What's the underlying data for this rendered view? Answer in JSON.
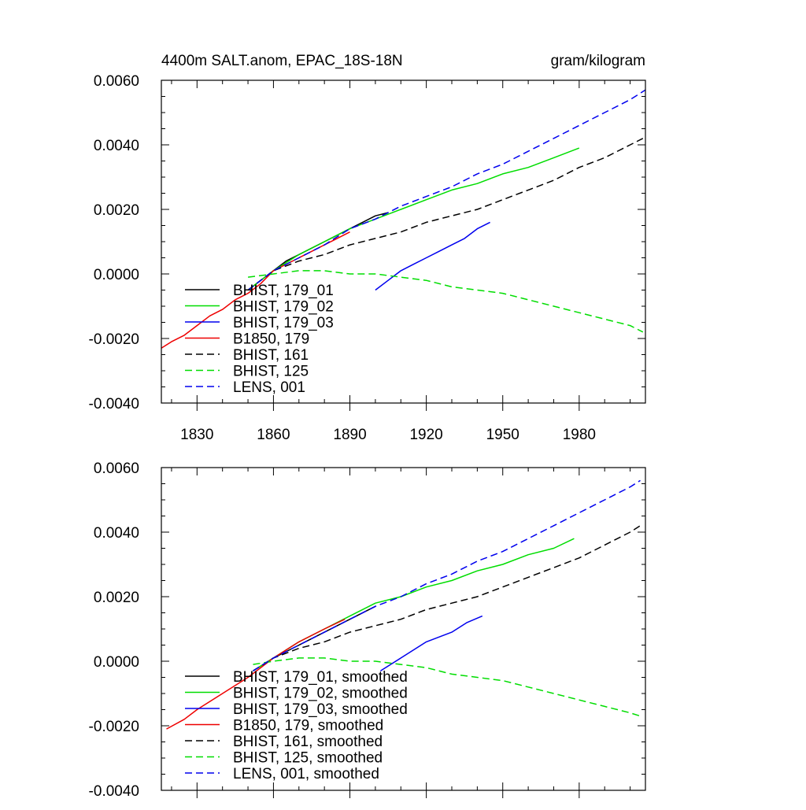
{
  "chart_data": [
    {
      "type": "line",
      "title": "4400m SALT.anom, EPAC_18S-18N",
      "units": "gram/kilogram",
      "xlim": [
        1816,
        2006
      ],
      "ylim": [
        -0.004,
        0.006
      ],
      "x_ticks": [
        1830,
        1860,
        1890,
        1920,
        1950,
        1980
      ],
      "x_tick_labels": [
        "1830",
        "1860",
        "1890",
        "1920",
        "1950",
        "1980"
      ],
      "y_ticks": [
        -0.004,
        -0.002,
        0.0,
        0.002,
        0.004,
        0.006
      ],
      "y_tick_labels": [
        "-0.0040",
        "-0.0020",
        "0.0000",
        "0.0020",
        "0.0040",
        "0.0060"
      ],
      "legend_position": "bottom-left",
      "series": [
        {
          "name": "BHIST, 179_01",
          "color": "#000000",
          "dash": "solid",
          "x": [
            1850,
            1855,
            1860,
            1865,
            1870,
            1875,
            1880,
            1885,
            1890,
            1895,
            1900,
            1905
          ],
          "y": [
            -0.0005,
            -0.0002,
            0.0001,
            0.0004,
            0.0006,
            0.0008,
            0.001,
            0.0012,
            0.0014,
            0.0016,
            0.0018,
            0.0019
          ]
        },
        {
          "name": "BHIST, 179_02",
          "color": "#00dd00",
          "dash": "solid",
          "x": [
            1850,
            1860,
            1870,
            1880,
            1890,
            1900,
            1910,
            1920,
            1930,
            1940,
            1950,
            1960,
            1970,
            1980
          ],
          "y": [
            -0.0005,
            0.0001,
            0.0006,
            0.001,
            0.0014,
            0.0017,
            0.002,
            0.0023,
            0.0026,
            0.0028,
            0.0031,
            0.0033,
            0.0036,
            0.0039
          ]
        },
        {
          "name": "BHIST, 179_03",
          "color": "#0000ee",
          "dash": "solid",
          "x": [
            1900,
            1905,
            1910,
            1915,
            1920,
            1925,
            1930,
            1935,
            1940,
            1945
          ],
          "y": [
            -0.0005,
            -0.0002,
            0.0001,
            0.0003,
            0.0005,
            0.0007,
            0.0009,
            0.0011,
            0.0014,
            0.0016
          ]
        },
        {
          "name": "B1850, 179",
          "color": "#ee0000",
          "dash": "solid",
          "x": [
            1816,
            1820,
            1825,
            1830,
            1835,
            1840,
            1845,
            1850,
            1855,
            1860,
            1865,
            1870,
            1875,
            1880,
            1885,
            1890
          ],
          "y": [
            -0.0023,
            -0.0021,
            -0.0019,
            -0.0016,
            -0.0013,
            -0.0011,
            -0.0008,
            -0.0006,
            -0.0003,
            0.0001,
            0.0003,
            0.0005,
            0.0007,
            0.0009,
            0.0011,
            0.0013
          ]
        },
        {
          "name": "BHIST, 161",
          "color": "#000000",
          "dash": "dashed",
          "x": [
            1850,
            1860,
            1870,
            1880,
            1890,
            1900,
            1910,
            1920,
            1930,
            1940,
            1950,
            1960,
            1970,
            1980,
            1990,
            2000,
            2005
          ],
          "y": [
            -0.0005,
            0.0001,
            0.0004,
            0.0006,
            0.0009,
            0.0011,
            0.0013,
            0.0016,
            0.0018,
            0.002,
            0.0023,
            0.0026,
            0.0029,
            0.0033,
            0.0036,
            0.004,
            0.0042
          ]
        },
        {
          "name": "BHIST, 125",
          "color": "#00dd00",
          "dash": "dashed",
          "x": [
            1850,
            1860,
            1870,
            1880,
            1890,
            1900,
            1910,
            1920,
            1930,
            1940,
            1950,
            1960,
            1970,
            1980,
            1990,
            2000,
            2005
          ],
          "y": [
            -0.0001,
            0.0,
            0.0001,
            0.0001,
            0.0,
            0.0,
            -0.0001,
            -0.0002,
            -0.0004,
            -0.0005,
            -0.0006,
            -0.0008,
            -0.001,
            -0.0012,
            -0.0014,
            -0.0016,
            -0.0018
          ]
        },
        {
          "name": "LENS, 001",
          "color": "#0000ee",
          "dash": "dashed",
          "x": [
            1850,
            1860,
            1870,
            1880,
            1890,
            1900,
            1910,
            1920,
            1930,
            1940,
            1950,
            1960,
            1970,
            1980,
            1990,
            2000,
            2006
          ],
          "y": [
            -0.0005,
            0.0001,
            0.0005,
            0.0009,
            0.0014,
            0.0017,
            0.0021,
            0.0024,
            0.0027,
            0.0031,
            0.0034,
            0.0038,
            0.0042,
            0.0046,
            0.005,
            0.0054,
            0.0057
          ]
        }
      ]
    },
    {
      "type": "line",
      "title": "",
      "units": "",
      "xlim": [
        1816,
        2006
      ],
      "ylim": [
        -0.004,
        0.006
      ],
      "x_ticks": [
        1830,
        1860,
        1890,
        1920,
        1950,
        1980
      ],
      "x_tick_labels": [
        "",
        "",
        "",
        "",
        "",
        ""
      ],
      "y_ticks": [
        -0.004,
        -0.002,
        0.0,
        0.002,
        0.004,
        0.006
      ],
      "y_tick_labels": [
        "-0.0040",
        "-0.0020",
        "0.0000",
        "0.0020",
        "0.0040",
        "0.0060"
      ],
      "legend_position": "bottom-left",
      "series": [
        {
          "name": "BHIST, 179_01, smoothed",
          "color": "#000000",
          "dash": "solid",
          "x": [
            1852,
            1860,
            1870,
            1880,
            1890,
            1900
          ],
          "y": [
            -0.0003,
            0.0001,
            0.0005,
            0.0009,
            0.0013,
            0.0017
          ]
        },
        {
          "name": "BHIST, 179_02, smoothed",
          "color": "#00dd00",
          "dash": "solid",
          "x": [
            1852,
            1860,
            1870,
            1880,
            1890,
            1900,
            1910,
            1920,
            1930,
            1940,
            1950,
            1960,
            1970,
            1978
          ],
          "y": [
            -0.0003,
            0.0001,
            0.0006,
            0.001,
            0.0014,
            0.0018,
            0.002,
            0.0023,
            0.0025,
            0.0028,
            0.003,
            0.0033,
            0.0035,
            0.0038
          ]
        },
        {
          "name": "BHIST, 179_03, smoothed",
          "color": "#0000ee",
          "dash": "solid",
          "x": [
            1902,
            1910,
            1920,
            1930,
            1936,
            1942
          ],
          "y": [
            -0.0003,
            0.0001,
            0.0006,
            0.0009,
            0.0012,
            0.0014
          ]
        },
        {
          "name": "B1850, 179, smoothed",
          "color": "#ee0000",
          "dash": "solid",
          "x": [
            1818,
            1825,
            1830,
            1840,
            1850,
            1860,
            1870,
            1880,
            1888
          ],
          "y": [
            -0.0021,
            -0.0018,
            -0.0015,
            -0.001,
            -0.0005,
            0.0001,
            0.0006,
            0.001,
            0.0013
          ]
        },
        {
          "name": "BHIST, 161, smoothed",
          "color": "#000000",
          "dash": "dashed",
          "x": [
            1852,
            1860,
            1870,
            1880,
            1890,
            1900,
            1910,
            1920,
            1930,
            1940,
            1950,
            1960,
            1970,
            1980,
            1990,
            2000,
            2004
          ],
          "y": [
            -0.0003,
            0.0001,
            0.0004,
            0.0006,
            0.0009,
            0.0011,
            0.0013,
            0.0016,
            0.0018,
            0.002,
            0.0023,
            0.0026,
            0.0029,
            0.0032,
            0.0036,
            0.004,
            0.0042
          ]
        },
        {
          "name": "BHIST, 125, smoothed",
          "color": "#00dd00",
          "dash": "dashed",
          "x": [
            1852,
            1860,
            1870,
            1880,
            1890,
            1900,
            1910,
            1920,
            1930,
            1940,
            1950,
            1960,
            1970,
            1980,
            1990,
            2000,
            2004
          ],
          "y": [
            -0.0001,
            0.0,
            0.0001,
            0.0001,
            0.0,
            0.0,
            -0.0001,
            -0.0002,
            -0.0004,
            -0.0005,
            -0.0006,
            -0.0008,
            -0.001,
            -0.0012,
            -0.0014,
            -0.0016,
            -0.0017
          ]
        },
        {
          "name": "LENS, 001, smoothed",
          "color": "#0000ee",
          "dash": "dashed",
          "x": [
            1852,
            1860,
            1870,
            1880,
            1890,
            1900,
            1910,
            1920,
            1930,
            1940,
            1950,
            1960,
            1970,
            1980,
            1990,
            2000,
            2004
          ],
          "y": [
            -0.0003,
            0.0001,
            0.0005,
            0.0009,
            0.0013,
            0.0017,
            0.002,
            0.0024,
            0.0027,
            0.0031,
            0.0034,
            0.0038,
            0.0042,
            0.0046,
            0.005,
            0.0054,
            0.0056
          ]
        }
      ]
    }
  ]
}
